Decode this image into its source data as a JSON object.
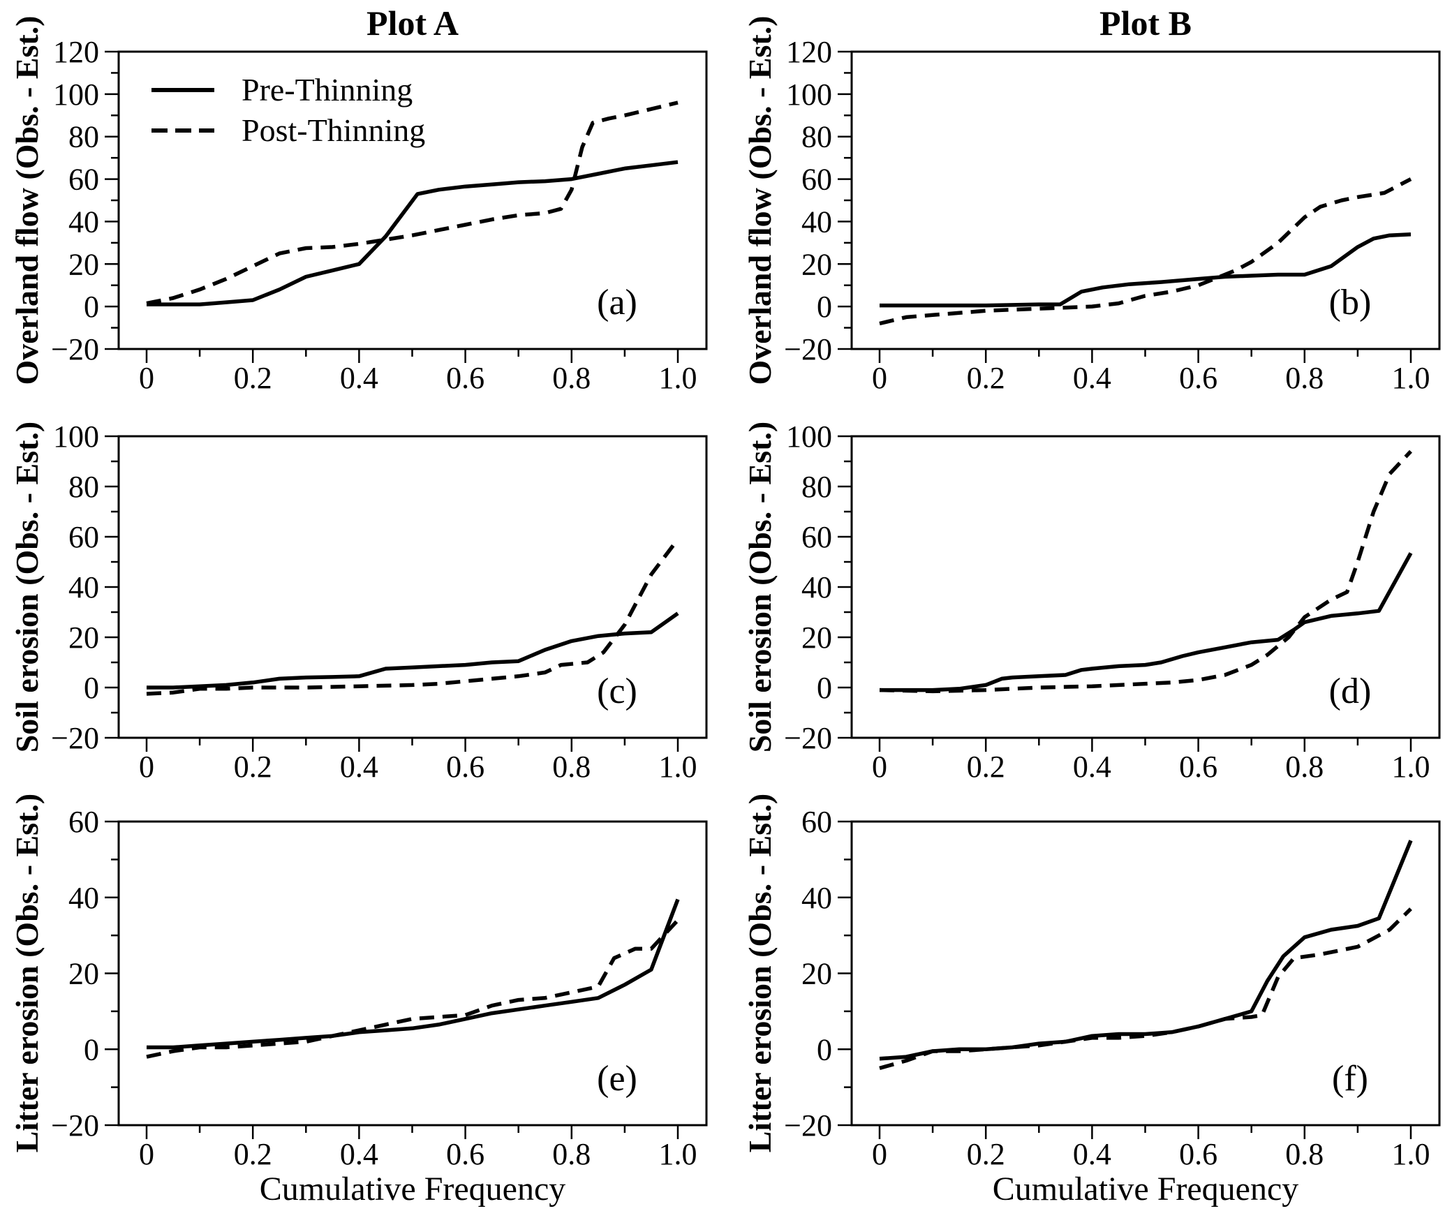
{
  "figure": {
    "column_titles": [
      "Plot A",
      "Plot B"
    ],
    "x_axis_label": "Cumulative Frequency",
    "legend": {
      "entries": [
        {
          "label": "Pre-Thinning",
          "style": "solid"
        },
        {
          "label": "Post-Thinning",
          "style": "dashed"
        }
      ]
    },
    "colors": {
      "line": "#000000",
      "background": "#ffffff"
    }
  },
  "chart_data": [
    {
      "type": "line",
      "id": "a",
      "panel_letter": "(a)",
      "row": 0,
      "col": 0,
      "title": "Plot A",
      "ylabel": "Overland flow (Obs. - Est.)",
      "xlim": [
        0,
        1
      ],
      "ylim": [
        -20,
        120
      ],
      "xticks": [
        0,
        0.2,
        0.4,
        0.6,
        0.8,
        1.0
      ],
      "yticks": [
        -20,
        0,
        20,
        40,
        60,
        80,
        100,
        120
      ],
      "x_minor_step": 0.1,
      "y_minor_step": 10,
      "grid": false,
      "legend_position": "top-left",
      "series": [
        {
          "name": "Pre-Thinning",
          "style": "solid",
          "x": [
            0,
            0.05,
            0.1,
            0.15,
            0.2,
            0.25,
            0.3,
            0.35,
            0.4,
            0.45,
            0.51,
            0.55,
            0.6,
            0.65,
            0.7,
            0.75,
            0.8,
            0.85,
            0.9,
            0.95,
            1.0
          ],
          "y": [
            1,
            1,
            1,
            2,
            3,
            8,
            14,
            17,
            20,
            33,
            53,
            55,
            56.5,
            57.5,
            58.5,
            59,
            60,
            62.5,
            65,
            66.5,
            68
          ]
        },
        {
          "name": "Post-Thinning",
          "style": "dashed",
          "x": [
            0,
            0.05,
            0.1,
            0.15,
            0.2,
            0.25,
            0.3,
            0.35,
            0.4,
            0.45,
            0.5,
            0.55,
            0.6,
            0.65,
            0.7,
            0.75,
            0.78,
            0.8,
            0.82,
            0.84,
            0.87,
            0.9,
            0.95,
            1.0
          ],
          "y": [
            1.5,
            4,
            8,
            13,
            19,
            25,
            27.5,
            28,
            29.5,
            31.5,
            33.5,
            36,
            38.5,
            41,
            43,
            44,
            46,
            55,
            75,
            86.5,
            88.5,
            90,
            93,
            96
          ]
        }
      ]
    },
    {
      "type": "line",
      "id": "b",
      "panel_letter": "(b)",
      "row": 0,
      "col": 1,
      "title": "Plot B",
      "ylabel": "Overland flow (Obs. - Est.)",
      "xlim": [
        0,
        1
      ],
      "ylim": [
        -20,
        120
      ],
      "xticks": [
        0,
        0.2,
        0.4,
        0.6,
        0.8,
        1.0
      ],
      "yticks": [
        -20,
        0,
        20,
        40,
        60,
        80,
        100,
        120
      ],
      "x_minor_step": 0.1,
      "y_minor_step": 10,
      "grid": false,
      "legend_position": null,
      "series": [
        {
          "name": "Pre-Thinning",
          "style": "solid",
          "x": [
            0,
            0.1,
            0.2,
            0.3,
            0.34,
            0.38,
            0.42,
            0.47,
            0.53,
            0.6,
            0.65,
            0.7,
            0.75,
            0.8,
            0.85,
            0.9,
            0.93,
            0.96,
            1.0
          ],
          "y": [
            0.5,
            0.5,
            0.5,
            1,
            1,
            7,
            9,
            10.5,
            11.5,
            13,
            14,
            14.5,
            15,
            15,
            19,
            28,
            32,
            33.5,
            34
          ]
        },
        {
          "name": "Post-Thinning",
          "style": "dashed",
          "x": [
            0,
            0.05,
            0.1,
            0.15,
            0.2,
            0.25,
            0.3,
            0.35,
            0.4,
            0.45,
            0.5,
            0.55,
            0.6,
            0.63,
            0.67,
            0.7,
            0.75,
            0.8,
            0.83,
            0.87,
            0.9,
            0.95,
            1.0
          ],
          "y": [
            -8,
            -5,
            -4,
            -3,
            -2,
            -1.5,
            -1,
            -0.5,
            0,
            1.5,
            5,
            7,
            10,
            13,
            17,
            21,
            30,
            42,
            47,
            50,
            51.5,
            53.5,
            60
          ]
        }
      ]
    },
    {
      "type": "line",
      "id": "c",
      "panel_letter": "(c)",
      "row": 1,
      "col": 0,
      "title": "Plot A",
      "ylabel": "Soil erosion (Obs. - Est.)",
      "xlim": [
        0,
        1
      ],
      "ylim": [
        -20,
        100
      ],
      "xticks": [
        0,
        0.2,
        0.4,
        0.6,
        0.8,
        1.0
      ],
      "yticks": [
        -20,
        0,
        20,
        40,
        60,
        80,
        100
      ],
      "x_minor_step": 0.1,
      "y_minor_step": 10,
      "grid": false,
      "legend_position": null,
      "series": [
        {
          "name": "Pre-Thinning",
          "style": "solid",
          "x": [
            0,
            0.05,
            0.1,
            0.15,
            0.2,
            0.25,
            0.3,
            0.35,
            0.4,
            0.45,
            0.5,
            0.55,
            0.6,
            0.65,
            0.7,
            0.75,
            0.8,
            0.85,
            0.9,
            0.95,
            1.0
          ],
          "y": [
            0,
            0,
            0.5,
            1,
            2,
            3.5,
            4,
            4.2,
            4.5,
            7.5,
            8,
            8.5,
            9,
            10,
            10.5,
            15,
            18.5,
            20.5,
            21.5,
            22,
            29.5
          ]
        },
        {
          "name": "Post-Thinning",
          "style": "dashed",
          "x": [
            0,
            0.05,
            0.1,
            0.15,
            0.2,
            0.3,
            0.4,
            0.5,
            0.55,
            0.6,
            0.65,
            0.7,
            0.75,
            0.78,
            0.83,
            0.86,
            0.9,
            0.95,
            1.0
          ],
          "y": [
            -2.5,
            -2,
            -0.5,
            -0.5,
            0,
            0,
            0.5,
            1,
            1.5,
            2.5,
            3.5,
            4.5,
            6,
            9,
            10,
            14,
            25,
            45,
            59
          ]
        }
      ]
    },
    {
      "type": "line",
      "id": "d",
      "panel_letter": "(d)",
      "row": 1,
      "col": 1,
      "title": "Plot B",
      "ylabel": "Soil erosion (Obs. - Est.)",
      "xlim": [
        0,
        1
      ],
      "ylim": [
        -20,
        100
      ],
      "xticks": [
        0,
        0.2,
        0.4,
        0.6,
        0.8,
        1.0
      ],
      "yticks": [
        -20,
        0,
        20,
        40,
        60,
        80,
        100
      ],
      "x_minor_step": 0.1,
      "y_minor_step": 10,
      "grid": false,
      "legend_position": null,
      "series": [
        {
          "name": "Pre-Thinning",
          "style": "solid",
          "x": [
            0,
            0.05,
            0.1,
            0.15,
            0.2,
            0.23,
            0.25,
            0.3,
            0.35,
            0.38,
            0.4,
            0.45,
            0.5,
            0.53,
            0.57,
            0.6,
            0.65,
            0.7,
            0.75,
            0.78,
            0.8,
            0.85,
            0.9,
            0.94,
            1.0
          ],
          "y": [
            -1,
            -1,
            -1,
            -0.5,
            1,
            3.5,
            4,
            4.5,
            5,
            7,
            7.5,
            8.5,
            9,
            10,
            12.5,
            14,
            16,
            18,
            19,
            23,
            26,
            28.5,
            29.5,
            30.5,
            53.5
          ]
        },
        {
          "name": "Post-Thinning",
          "style": "dashed",
          "x": [
            0,
            0.1,
            0.2,
            0.3,
            0.4,
            0.5,
            0.55,
            0.6,
            0.65,
            0.7,
            0.73,
            0.77,
            0.8,
            0.85,
            0.88,
            0.9,
            0.93,
            0.96,
            1.0
          ],
          "y": [
            -1,
            -1.5,
            -1,
            0,
            0.5,
            1.5,
            2,
            3,
            5,
            9,
            13,
            20,
            28,
            35,
            38,
            50,
            70,
            85,
            94
          ]
        }
      ]
    },
    {
      "type": "line",
      "id": "e",
      "panel_letter": "(e)",
      "row": 2,
      "col": 0,
      "title": "Plot A",
      "ylabel": "Litter erosion (Obs. - Est.)",
      "xlabel": "Cumulative Frequency",
      "xlim": [
        0,
        1
      ],
      "ylim": [
        -20,
        60
      ],
      "xticks": [
        0,
        0.2,
        0.4,
        0.6,
        0.8,
        1.0
      ],
      "yticks": [
        -20,
        0,
        20,
        40,
        60
      ],
      "x_minor_step": 0.1,
      "y_minor_step": 10,
      "grid": false,
      "legend_position": null,
      "series": [
        {
          "name": "Pre-Thinning",
          "style": "solid",
          "x": [
            0,
            0.05,
            0.1,
            0.15,
            0.2,
            0.25,
            0.3,
            0.35,
            0.4,
            0.45,
            0.5,
            0.55,
            0.6,
            0.65,
            0.7,
            0.75,
            0.8,
            0.85,
            0.9,
            0.95,
            1.0
          ],
          "y": [
            0.5,
            0.5,
            1,
            1.5,
            2,
            2.5,
            3,
            3.5,
            4.5,
            5,
            5.5,
            6.5,
            8,
            9.5,
            10.5,
            11.5,
            12.5,
            13.5,
            17,
            21,
            39.5
          ]
        },
        {
          "name": "Post-Thinning",
          "style": "dashed",
          "x": [
            0,
            0.05,
            0.1,
            0.15,
            0.2,
            0.25,
            0.3,
            0.35,
            0.4,
            0.45,
            0.5,
            0.55,
            0.6,
            0.65,
            0.7,
            0.75,
            0.8,
            0.85,
            0.88,
            0.92,
            0.95,
            1.0
          ],
          "y": [
            -2,
            -0.5,
            0.5,
            0.5,
            1,
            1.5,
            2,
            3.5,
            5,
            6.5,
            8,
            8.5,
            9,
            11.5,
            13,
            13.5,
            15,
            16.5,
            24,
            26.5,
            26.5,
            34
          ]
        }
      ]
    },
    {
      "type": "line",
      "id": "f",
      "panel_letter": "(f)",
      "row": 2,
      "col": 1,
      "title": "Plot B",
      "ylabel": "Litter erosion (Obs. - Est.)",
      "xlabel": "Cumulative Frequency",
      "xlim": [
        0,
        1
      ],
      "ylim": [
        -20,
        60
      ],
      "xticks": [
        0,
        0.2,
        0.4,
        0.6,
        0.8,
        1.0
      ],
      "yticks": [
        -20,
        0,
        20,
        40,
        60
      ],
      "x_minor_step": 0.1,
      "y_minor_step": 10,
      "grid": false,
      "legend_position": null,
      "series": [
        {
          "name": "Pre-Thinning",
          "style": "solid",
          "x": [
            0,
            0.05,
            0.1,
            0.15,
            0.2,
            0.25,
            0.3,
            0.35,
            0.4,
            0.45,
            0.5,
            0.55,
            0.6,
            0.65,
            0.7,
            0.73,
            0.76,
            0.8,
            0.85,
            0.9,
            0.94,
            1.0
          ],
          "y": [
            -2.5,
            -2,
            -0.5,
            0,
            0,
            0.5,
            1.5,
            2,
            3.5,
            4,
            4,
            4.5,
            6,
            8,
            10,
            18,
            24.5,
            29.5,
            31.5,
            32.5,
            34.5,
            55
          ]
        },
        {
          "name": "Post-Thinning",
          "style": "dashed",
          "x": [
            0,
            0.05,
            0.1,
            0.15,
            0.2,
            0.25,
            0.3,
            0.35,
            0.4,
            0.45,
            0.5,
            0.55,
            0.6,
            0.65,
            0.7,
            0.72,
            0.75,
            0.78,
            0.83,
            0.9,
            0.96,
            1.0
          ],
          "y": [
            -5,
            -3,
            -0.5,
            -0.5,
            0,
            0.5,
            1,
            2,
            3,
            3,
            3.5,
            4.5,
            6,
            8,
            8.5,
            9,
            19,
            24,
            25,
            27,
            31.5,
            37
          ]
        }
      ]
    }
  ]
}
